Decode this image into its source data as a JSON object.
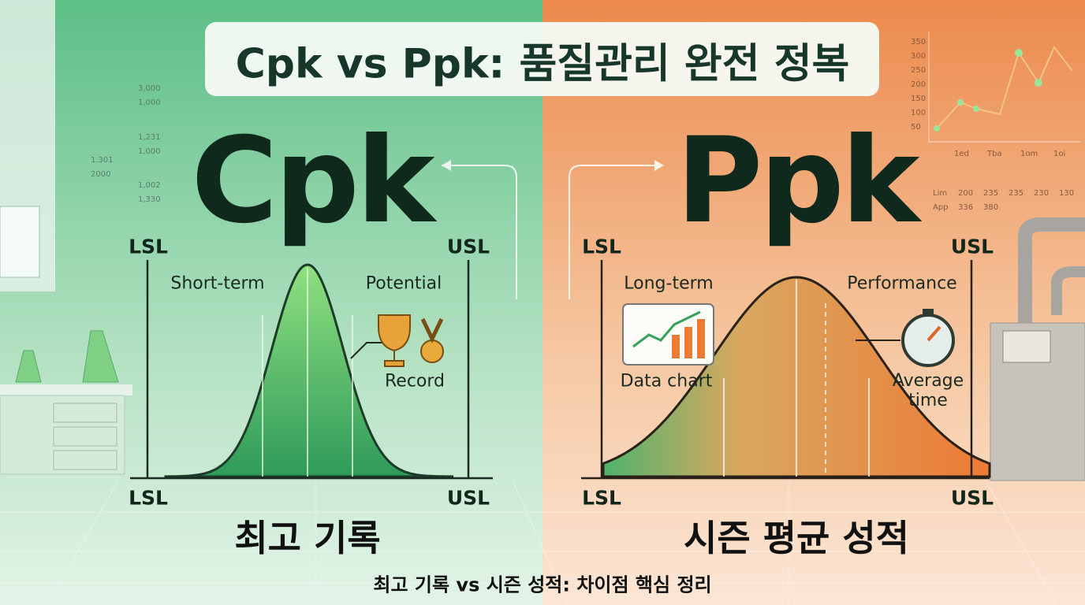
{
  "title": "Cpk vs Ppk: 품질관리 완전 정복",
  "left": {
    "heading": "Cpk",
    "lsl_top": "LSL",
    "usl_top": "USL",
    "label_left": "Short-term",
    "label_right": "Potential",
    "icon_label": "Record",
    "lsl_bottom": "LSL",
    "usl_bottom": "USL",
    "caption": "최고 기록"
  },
  "right": {
    "heading": "Ppk",
    "lsl_top": "LSL",
    "usl_top": "USL",
    "label_left": "Long-term",
    "label_right": "Performance",
    "icon_label_left": "Data chart",
    "icon_label_right": "Average time",
    "lsl_bottom": "LSL",
    "usl_bottom": "USL",
    "caption": "시즌 평균 성적"
  },
  "left_decor": [
    "3,000",
    "1,000",
    "1,231",
    "1,000",
    "1.301",
    "2000",
    "1,002",
    "1,330"
  ],
  "right_decor": {
    "yticks": [
      "350",
      "300",
      "250",
      "200",
      "150",
      "100",
      "50"
    ],
    "xlabels": [
      "1ed",
      "Tba",
      "1om",
      "1oi"
    ],
    "rows": [
      [
        "Lim",
        "200",
        "235",
        "235",
        "230",
        "130"
      ],
      [
        "App",
        "336",
        "380"
      ]
    ]
  },
  "footer": "최고 기록 vs 시즌 성적: 차이점 핵심 정리"
}
